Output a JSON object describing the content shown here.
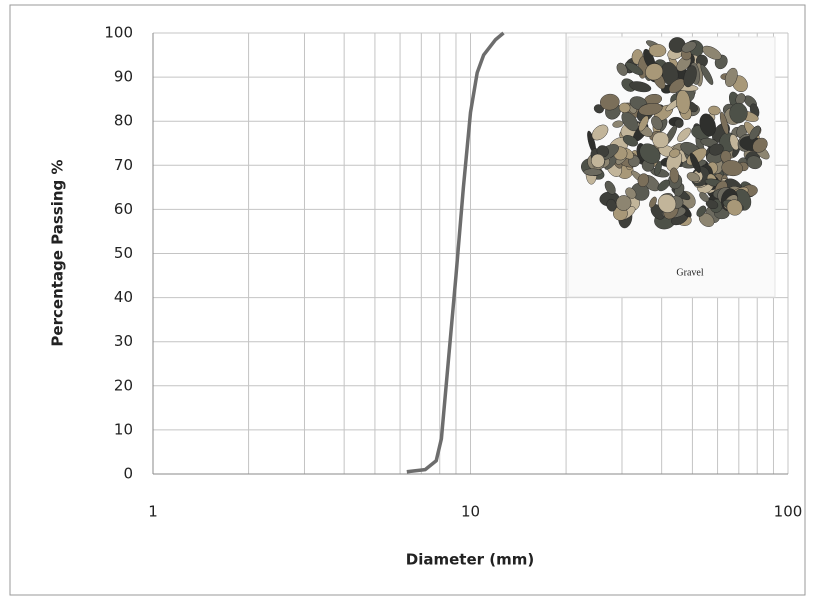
{
  "chart_data": {
    "type": "line",
    "x_label": "Diameter (mm)",
    "y_label": "Percentage Passing %",
    "x_log": true,
    "xlim": [
      1,
      100
    ],
    "xticks": [
      1,
      10,
      100
    ],
    "x_minor_grid": [
      2,
      3,
      4,
      5,
      6,
      7,
      8,
      9,
      20,
      30,
      40,
      50,
      60,
      70,
      80,
      90
    ],
    "ylim": [
      0,
      100
    ],
    "yticks": [
      0,
      10,
      20,
      30,
      40,
      50,
      60,
      70,
      80,
      90,
      100
    ],
    "grid": true,
    "series": [
      {
        "color": "#6d6d6d",
        "x": [
          6.3,
          7.2,
          7.8,
          8.1,
          8.5,
          9,
          9.5,
          10,
          10.5,
          11,
          12,
          12.7
        ],
        "values": [
          0.5,
          1,
          3,
          8,
          25,
          45,
          65,
          82,
          91,
          95,
          98.5,
          100
        ]
      }
    ],
    "inset_caption": "Gravel"
  }
}
